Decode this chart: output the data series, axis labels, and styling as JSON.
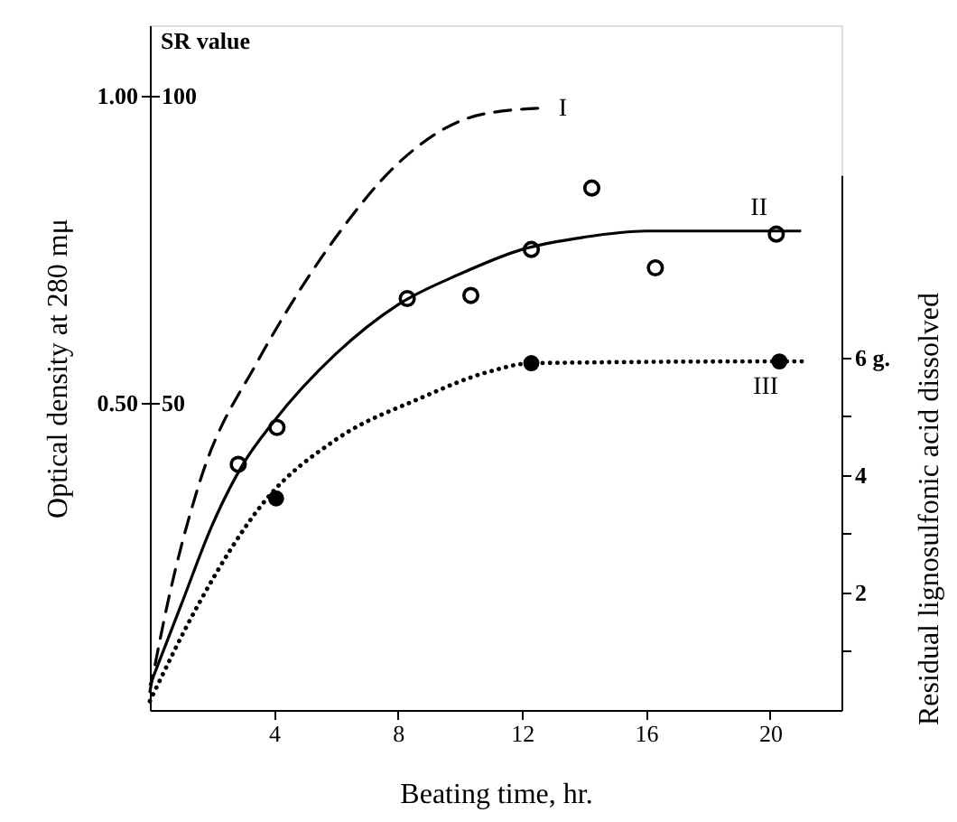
{
  "chart_data": {
    "type": "line",
    "xlabel": "Beating time, hr.",
    "ylabel": "Optical density at 280 mμ",
    "y2label": "SR value",
    "y3label": "Residual lignosulfonic acid dissolved",
    "xlim": [
      0,
      22.3
    ],
    "xticks": [
      4,
      8,
      12,
      16,
      20
    ],
    "ylim": [
      0,
      1.115
    ],
    "yticks": [
      {
        "value": 0.5,
        "label": "0.50"
      },
      {
        "value": 1.0,
        "label": "1.00"
      }
    ],
    "y2lim": [
      0,
      111.5
    ],
    "y2ticks": [
      50,
      100
    ],
    "y3lim": [
      0,
      9.1
    ],
    "y3ticks": [
      {
        "value": 1,
        "label": null
      },
      2,
      {
        "value": 3,
        "label": null
      },
      4,
      {
        "value": 5,
        "label": null
      },
      {
        "value": 6,
        "label": "6 g."
      }
    ],
    "grid": false,
    "series": [
      {
        "axis": "y2",
        "color": "#000000",
        "line_style": "dashed",
        "marker": "none",
        "x": [
          0,
          0.6,
          1.6,
          3.5,
          4.3,
          6,
          8,
          10.7,
          12.6
        ],
        "values": [
          3,
          18,
          37,
          57,
          64,
          77,
          89,
          97,
          98
        ]
      },
      {
        "color": "#000000",
        "line_style": "solid",
        "marker": "none",
        "x": [
          0,
          1,
          2,
          3,
          4,
          6,
          8,
          10,
          12,
          14,
          16,
          18,
          21
        ],
        "values": [
          0.04,
          0.17,
          0.3,
          0.4,
          0.47,
          0.58,
          0.66,
          0.71,
          0.75,
          0.77,
          0.78,
          0.78,
          0.78
        ]
      },
      {
        "type": "scatter",
        "color": "#000000",
        "marker": "circle",
        "x": [
          2.85,
          4.1,
          8.3,
          10.35,
          12.3,
          14.25,
          16.3,
          20.2
        ],
        "values": [
          0.4,
          0.46,
          0.67,
          0.675,
          0.75,
          0.85,
          0.72,
          0.775
        ]
      },
      {
        "axis": "y3",
        "color": "#000000",
        "line_style": "dotted",
        "marker": "none",
        "x": [
          0,
          1.6,
          3.7,
          6,
          8.7,
          10.9,
          12.3,
          20.3,
          21.2
        ],
        "values": [
          0.15,
          1.83,
          3.55,
          4.6,
          5.3,
          5.75,
          5.9,
          5.93,
          5.93
        ]
      },
      {
        "type": "scatter",
        "axis": "y3",
        "color": "#000000",
        "marker": "circle",
        "x": [
          4.07,
          12.3,
          20.3
        ],
        "values": [
          3.6,
          5.9,
          5.93
        ]
      }
    ],
    "annotations": [
      "I",
      "II",
      "III"
    ]
  }
}
